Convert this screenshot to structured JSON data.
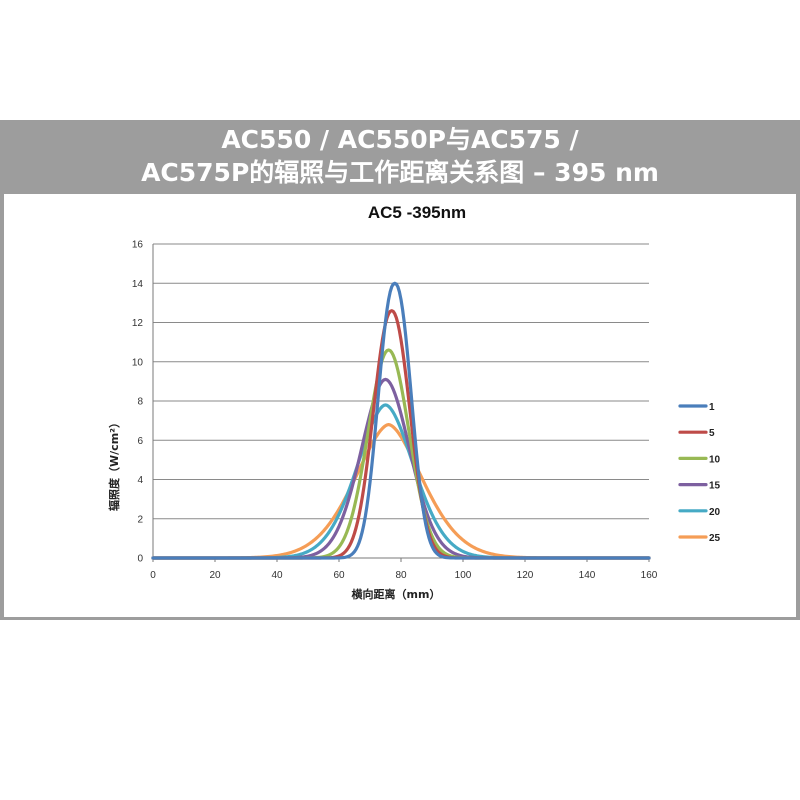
{
  "banner": {
    "line1": "AC550 / AC550P与AC575 /",
    "line2": "AC575P的辐照与工作距离关系图 – 395 nm"
  },
  "chart_data": {
    "type": "line",
    "title": "AC5 -395nm",
    "xlabel": "横向距离（mm）",
    "ylabel": "辐照度（W/cm²）",
    "xlim": [
      0,
      160
    ],
    "ylim": [
      0,
      16
    ],
    "xticks": [
      "0",
      "20",
      "40",
      "60",
      "80",
      "100",
      "120",
      "140",
      "160"
    ],
    "yticks": [
      "0",
      "2",
      "4",
      "6",
      "8",
      "10",
      "12",
      "14",
      "16"
    ],
    "grid": true,
    "legend_position": "right",
    "series": [
      {
        "name": "1",
        "color": "#4a7ebb",
        "peak": 14.0,
        "center": 78,
        "sigma": 5.2,
        "power": 2.2
      },
      {
        "name": "5",
        "color": "#be4b48",
        "peak": 12.6,
        "center": 77,
        "sigma": 5.8,
        "power": 2.1
      },
      {
        "name": "10",
        "color": "#98b954",
        "peak": 10.6,
        "center": 76,
        "sigma": 6.6,
        "power": 2.0
      },
      {
        "name": "15",
        "color": "#7d60a0",
        "peak": 9.1,
        "center": 75,
        "sigma": 7.8,
        "power": 1.9
      },
      {
        "name": "20",
        "color": "#46aac5",
        "peak": 7.8,
        "center": 75,
        "sigma": 9.0,
        "power": 1.8
      },
      {
        "name": "25",
        "color": "#f59d56",
        "peak": 6.8,
        "center": 76,
        "sigma": 10.6,
        "power": 1.7
      }
    ]
  }
}
